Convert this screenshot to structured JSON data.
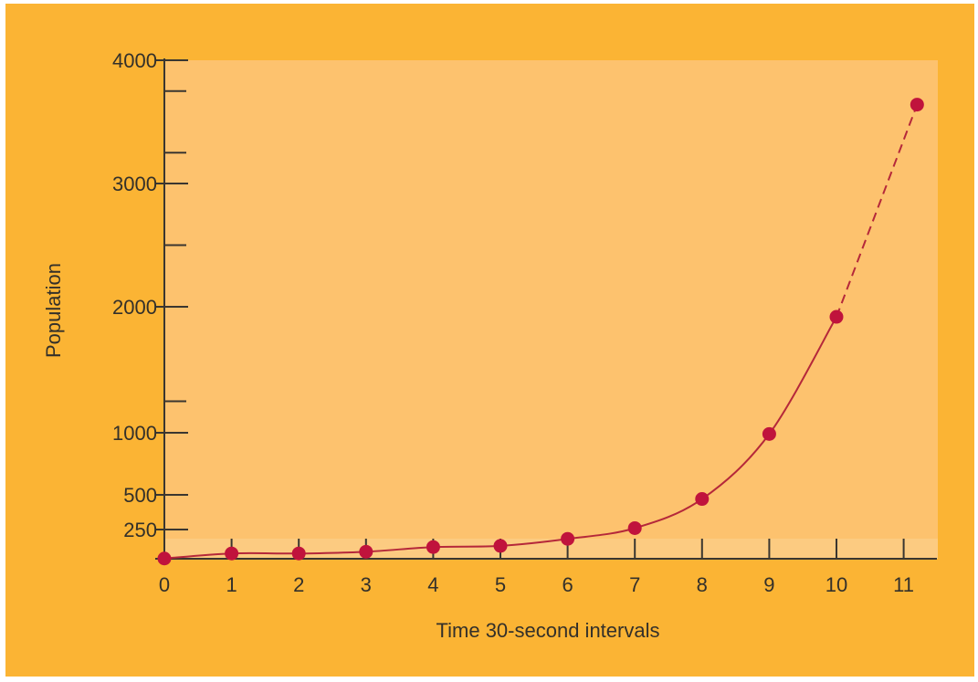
{
  "chart_data": {
    "type": "line",
    "title": "",
    "xlabel": "Time 30-second intervals",
    "ylabel": "Population",
    "x_ticks": [
      "0",
      "1",
      "2",
      "3",
      "4",
      "5",
      "6",
      "7",
      "8",
      "9",
      "10",
      "11"
    ],
    "y_ticks": [
      {
        "value": 250,
        "label": "250"
      },
      {
        "value": 500,
        "label": "500"
      },
      {
        "value": 1000,
        "label": "1000"
      },
      {
        "value": 2000,
        "label": "2000"
      },
      {
        "value": 3000,
        "label": "3000"
      },
      {
        "value": 4000,
        "label": "4000"
      }
    ],
    "y_minor_ticks": [
      1250,
      2500,
      3250,
      3750
    ],
    "xlim": [
      0,
      11.3
    ],
    "ylim": [
      0,
      4000
    ],
    "grid": false,
    "series": [
      {
        "points": [
          {
            "x": 0,
            "y": 2
          },
          {
            "x": 1,
            "y": 45
          },
          {
            "x": 2,
            "y": 45
          },
          {
            "x": 3,
            "y": 60
          },
          {
            "x": 4,
            "y": 100
          },
          {
            "x": 5,
            "y": 110
          },
          {
            "x": 6,
            "y": 170
          },
          {
            "x": 7,
            "y": 260
          },
          {
            "x": 8,
            "y": 470
          },
          {
            "x": 9,
            "y": 990
          },
          {
            "x": 10,
            "y": 1920
          },
          {
            "x": 11.2,
            "y": 3640
          }
        ],
        "color": "#c0133c",
        "line_style": "solid",
        "final_segment_style": "dashed"
      }
    ],
    "colors": {
      "background": "#fbb434",
      "plot_area": "#fdc26e",
      "axis": "#3a3630",
      "line": "#b5283a",
      "marker": "#c0133c"
    }
  }
}
